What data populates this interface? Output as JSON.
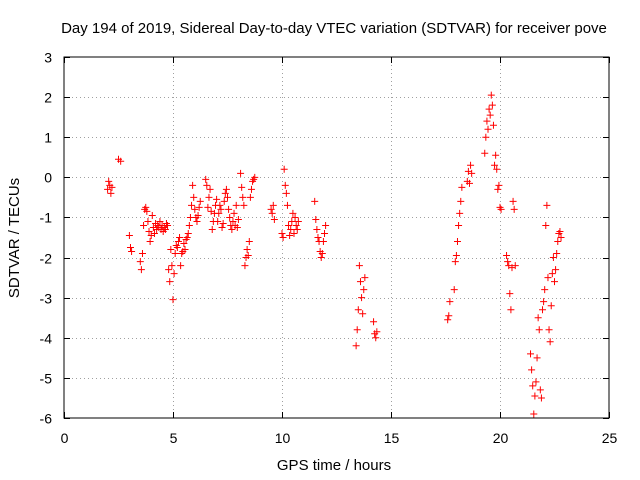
{
  "chart_data": {
    "type": "scatter",
    "title": "Day 194 of 2019, Sidereal Day-to-day VTEC variation (SDTVAR) for receiver pove",
    "xlabel": "GPS time / hours",
    "ylabel": "SDTVAR / TECUs",
    "xlim": [
      0,
      25
    ],
    "ylim": [
      -6,
      3
    ],
    "xticks": [
      0,
      5,
      10,
      15,
      20,
      25
    ],
    "yticks": [
      -6,
      -5,
      -4,
      -3,
      -2,
      -1,
      0,
      1,
      2,
      3
    ],
    "grid": true,
    "marker": "+",
    "series_color": "#ff0000",
    "series": [
      {
        "name": "SDTVAR",
        "x": [
          2.0,
          2.05,
          2.1,
          2.15,
          2.2,
          2.5,
          2.6,
          3.0,
          3.05,
          3.1,
          3.5,
          3.55,
          3.6,
          3.65,
          3.7,
          3.75,
          3.8,
          3.85,
          3.9,
          3.95,
          4.0,
          4.05,
          4.1,
          4.15,
          4.2,
          4.25,
          4.3,
          4.35,
          4.4,
          4.45,
          4.5,
          4.55,
          4.6,
          4.65,
          4.7,
          4.75,
          4.8,
          4.85,
          4.9,
          4.95,
          5.0,
          5.05,
          5.1,
          5.15,
          5.2,
          5.25,
          5.3,
          5.35,
          5.4,
          5.45,
          5.5,
          5.55,
          5.6,
          5.65,
          5.7,
          5.75,
          5.8,
          5.85,
          5.9,
          5.95,
          6.0,
          6.05,
          6.1,
          6.15,
          6.2,
          6.25,
          6.5,
          6.55,
          6.6,
          6.65,
          6.7,
          6.75,
          6.8,
          6.85,
          6.9,
          6.95,
          7.0,
          7.05,
          7.1,
          7.15,
          7.2,
          7.25,
          7.3,
          7.35,
          7.4,
          7.45,
          7.5,
          7.55,
          7.6,
          7.65,
          7.7,
          7.75,
          7.8,
          7.85,
          7.9,
          7.95,
          8.0,
          8.1,
          8.15,
          8.2,
          8.25,
          8.3,
          8.35,
          8.4,
          8.45,
          8.5,
          8.55,
          8.6,
          8.65,
          8.7,
          8.75,
          9.5,
          9.55,
          9.6,
          9.65,
          10.0,
          10.05,
          10.1,
          10.15,
          10.2,
          10.25,
          10.3,
          10.35,
          10.4,
          10.45,
          10.5,
          10.55,
          10.6,
          10.65,
          10.7,
          10.75,
          11.5,
          11.55,
          11.6,
          11.65,
          11.7,
          11.75,
          11.8,
          11.85,
          11.9,
          11.95,
          12.0,
          13.4,
          13.45,
          13.5,
          13.55,
          13.6,
          13.65,
          13.7,
          13.75,
          13.8,
          14.2,
          14.25,
          14.3,
          14.35,
          17.6,
          17.65,
          17.7,
          17.9,
          17.95,
          18.0,
          18.05,
          18.1,
          18.15,
          18.2,
          18.25,
          18.5,
          18.55,
          18.6,
          18.65,
          18.7,
          19.3,
          19.35,
          19.4,
          19.45,
          19.5,
          19.55,
          19.6,
          19.65,
          19.7,
          19.75,
          19.8,
          19.85,
          19.9,
          19.95,
          20.0,
          20.05,
          20.3,
          20.35,
          20.4,
          20.45,
          20.5,
          20.55,
          20.6,
          20.65,
          20.7,
          21.4,
          21.45,
          21.5,
          21.55,
          21.6,
          21.65,
          21.7,
          21.75,
          21.8,
          21.85,
          21.9,
          21.95,
          22.0,
          22.05,
          22.1,
          22.15,
          22.2,
          22.25,
          22.3,
          22.35,
          22.4,
          22.45,
          22.5,
          22.55,
          22.6,
          22.65,
          22.7,
          22.75,
          22.8
        ],
        "y": [
          -0.3,
          -0.1,
          -0.2,
          -0.4,
          -0.25,
          0.45,
          0.4,
          -1.45,
          -1.75,
          -1.85,
          -2.1,
          -2.3,
          -1.9,
          -1.2,
          -0.8,
          -0.75,
          -0.85,
          -1.1,
          -1.35,
          -1.6,
          -1.45,
          -0.95,
          -1.25,
          -1.4,
          -1.15,
          -1.3,
          -1.2,
          -1.25,
          -1.1,
          -1.3,
          -1.2,
          -1.35,
          -1.25,
          -1.3,
          -1.15,
          -1.2,
          -2.3,
          -2.6,
          -1.8,
          -2.2,
          -3.05,
          -2.4,
          -1.9,
          -1.7,
          -1.75,
          -1.6,
          -1.5,
          -2.2,
          -1.9,
          -1.85,
          -1.65,
          -1.8,
          -1.55,
          -1.5,
          -1.4,
          -1.2,
          -1.0,
          -0.7,
          -0.2,
          -0.5,
          -0.8,
          -1.0,
          -1.1,
          -0.95,
          -0.75,
          -0.6,
          -0.05,
          -0.2,
          -0.75,
          -0.5,
          -0.3,
          -0.85,
          -1.3,
          -1.1,
          -0.9,
          -0.7,
          -0.55,
          -1.1,
          -0.9,
          -0.7,
          -0.8,
          -1.25,
          -1.15,
          -0.6,
          -0.4,
          -0.3,
          -0.5,
          -0.8,
          -1.0,
          -1.2,
          -1.3,
          -1.1,
          -0.9,
          -1.2,
          -0.7,
          -1.25,
          -1.05,
          0.1,
          -0.25,
          -0.5,
          -0.7,
          -2.2,
          -2.0,
          -1.8,
          -1.95,
          -1.6,
          -0.5,
          -0.3,
          -0.1,
          -0.05,
          0.0,
          -0.8,
          -0.9,
          -0.7,
          -1.05,
          -1.4,
          -1.5,
          0.2,
          -0.2,
          -0.4,
          -0.7,
          -1.2,
          -1.45,
          -1.3,
          -1.1,
          -0.9,
          -1.4,
          -1.0,
          -1.2,
          -1.3,
          -1.1,
          -0.6,
          -1.05,
          -1.3,
          -1.5,
          -1.6,
          -1.85,
          -2.0,
          -1.9,
          -1.6,
          -1.4,
          -1.2,
          -4.2,
          -3.8,
          -3.3,
          -2.2,
          -2.6,
          -3.0,
          -3.4,
          -2.8,
          -2.5,
          -3.6,
          -3.9,
          -4.0,
          -3.85,
          -3.55,
          -3.45,
          -3.1,
          -2.8,
          -2.1,
          -1.95,
          -1.6,
          -1.2,
          -0.9,
          -0.6,
          -0.25,
          -0.1,
          0.15,
          -0.15,
          0.3,
          0.1,
          0.6,
          1.0,
          1.4,
          1.2,
          1.7,
          1.55,
          2.05,
          1.8,
          1.3,
          0.3,
          0.55,
          0.2,
          -0.3,
          -0.2,
          -0.75,
          -0.8,
          -1.95,
          -2.1,
          -2.2,
          -2.9,
          -3.3,
          -2.25,
          -0.6,
          -0.8,
          -2.2,
          -4.4,
          -4.8,
          -5.2,
          -5.9,
          -5.45,
          -5.1,
          -4.5,
          -3.5,
          -3.8,
          -5.3,
          -5.5,
          -3.3,
          -3.1,
          -2.8,
          -1.2,
          -0.7,
          -2.5,
          -3.8,
          -4.1,
          -3.2,
          -2.4,
          -2.0,
          -2.6,
          -2.3,
          -1.9,
          -1.6,
          -1.4,
          -1.35,
          -1.5
        ]
      }
    ]
  }
}
